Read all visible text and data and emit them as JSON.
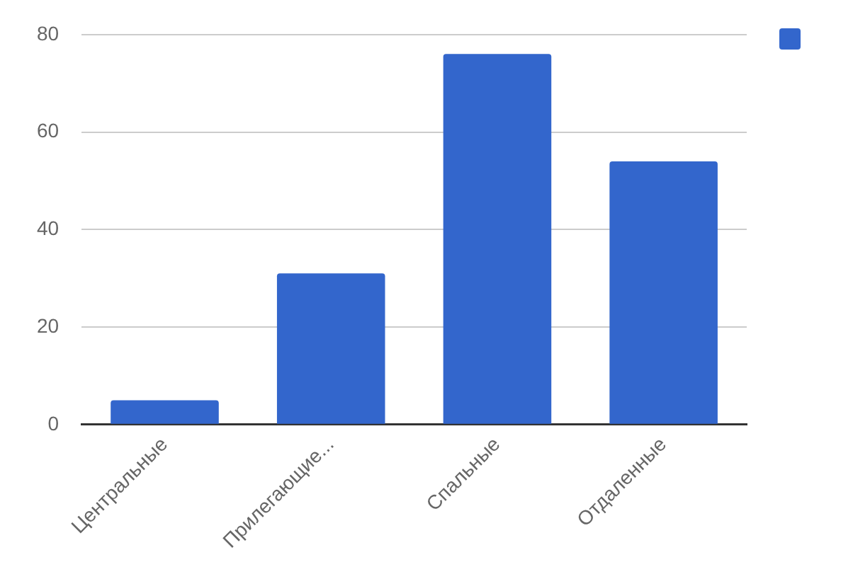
{
  "chart_data": {
    "type": "bar",
    "categories": [
      "Центральные",
      "Прилегающие...",
      "Спальные",
      "Отдаленные"
    ],
    "series": [
      {
        "color": "#3366cc",
        "values": [
          5,
          31,
          76,
          54
        ]
      }
    ],
    "ylim": [
      0,
      80
    ],
    "yticks": [
      0,
      20,
      40,
      60,
      80
    ],
    "grid": "y"
  }
}
